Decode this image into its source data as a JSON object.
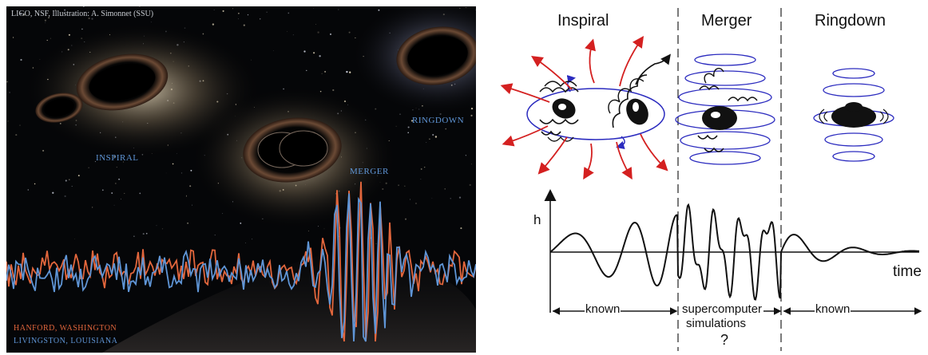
{
  "left_panel": {
    "credit": "LIGO, NSF, Illustration: A. Simonnet (SSU)",
    "labels": {
      "inspiral": "INSPIRAL",
      "merger": "MERGER",
      "ringdown": "RINGDOWN",
      "hanford": "HANFORD, WASHINGTON",
      "livingston": "LIVINGSTON, LOUISIANA"
    },
    "colors": {
      "hanford": "#e2663c",
      "livingston": "#5f95d6",
      "background": "#050608"
    }
  },
  "right_panel": {
    "phases": {
      "inspiral": "Inspiral",
      "merger": "Merger",
      "ringdown": "Ringdown"
    },
    "axis": {
      "y": "h",
      "x": "time"
    },
    "ranges": {
      "known_left": "known",
      "supercomputer_line1": "supercomputer",
      "supercomputer_line2": "simulations",
      "question": "?",
      "known_right": "known"
    },
    "colors": {
      "arrows": "#d42020",
      "field": "#2b2bbf",
      "ink": "#111111"
    }
  }
}
